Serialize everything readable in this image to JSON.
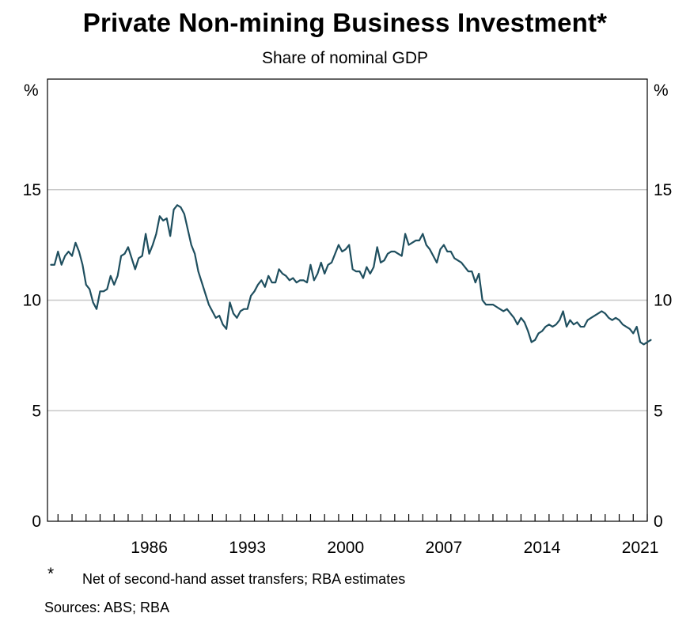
{
  "chart_data": {
    "type": "line",
    "title": "Private Non-mining Business Investment*",
    "subtitle": "Share of nominal GDP",
    "ylabel_left": "%",
    "ylabel_right": "%",
    "ylim": [
      0,
      20
    ],
    "yticks": [
      0,
      5,
      10,
      15
    ],
    "xlim": [
      1979.25,
      2022.0
    ],
    "xtick_labels": [
      "1986",
      "1993",
      "2000",
      "2007",
      "2014",
      "2021"
    ],
    "grid": true,
    "series": [
      {
        "name": "Private non-mining business investment",
        "color": "#1f4f5f",
        "start": 1979.5,
        "step": 0.25,
        "values": [
          11.6,
          11.6,
          12.2,
          11.6,
          12.0,
          12.2,
          12.0,
          12.6,
          12.2,
          11.6,
          10.7,
          10.5,
          9.9,
          9.6,
          10.4,
          10.4,
          10.5,
          11.1,
          10.7,
          11.1,
          12.0,
          12.1,
          12.4,
          11.9,
          11.4,
          11.9,
          12.0,
          13.0,
          12.1,
          12.5,
          13.0,
          13.8,
          13.6,
          13.7,
          12.9,
          14.1,
          14.3,
          14.2,
          13.9,
          13.2,
          12.5,
          12.1,
          11.3,
          10.8,
          10.3,
          9.8,
          9.5,
          9.2,
          9.3,
          8.9,
          8.7,
          9.9,
          9.4,
          9.2,
          9.5,
          9.6,
          9.6,
          10.2,
          10.4,
          10.7,
          10.9,
          10.6,
          11.1,
          10.8,
          10.8,
          11.4,
          11.2,
          11.1,
          10.9,
          11.0,
          10.8,
          10.9,
          10.9,
          10.8,
          11.6,
          10.9,
          11.2,
          11.7,
          11.2,
          11.6,
          11.7,
          12.1,
          12.5,
          12.2,
          12.3,
          12.5,
          11.4,
          11.3,
          11.3,
          11.0,
          11.5,
          11.2,
          11.5,
          12.4,
          11.7,
          11.8,
          12.1,
          12.2,
          12.2,
          12.1,
          12.0,
          13.0,
          12.5,
          12.6,
          12.7,
          12.7,
          13.0,
          12.5,
          12.3,
          12.0,
          11.7,
          12.3,
          12.5,
          12.2,
          12.2,
          11.9,
          11.8,
          11.7,
          11.5,
          11.3,
          11.3,
          10.8,
          11.2,
          10.0,
          9.8,
          9.8,
          9.8,
          9.7,
          9.6,
          9.5,
          9.6,
          9.4,
          9.2,
          8.9,
          9.2,
          9.0,
          8.6,
          8.1,
          8.2,
          8.5,
          8.6,
          8.8,
          8.9,
          8.8,
          8.9,
          9.1,
          9.5,
          8.8,
          9.1,
          8.9,
          9.0,
          8.8,
          8.8,
          9.1,
          9.2,
          9.3,
          9.4,
          9.5,
          9.4,
          9.2,
          9.1,
          9.2,
          9.1,
          8.9,
          8.8,
          8.7,
          8.5,
          8.8,
          8.1,
          8.0,
          8.1,
          8.2
        ]
      }
    ],
    "footnote_marker": "*",
    "footnote": "Net of second-hand asset transfers; RBA estimates",
    "sources": "Sources: ABS; RBA"
  }
}
